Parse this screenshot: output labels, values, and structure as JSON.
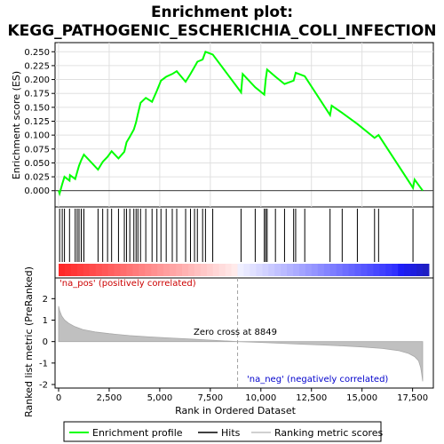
{
  "chart_data": {
    "type": "line",
    "title_line1": "Enrichment plot:",
    "title_line2": "KEGG_PATHOGENIC_ESCHERICHIA_COLI_INFECTION",
    "xlabel": "Rank in Ordered Dataset",
    "ylabel_top": "Enrichment score (ES)",
    "ylabel_bottom": "Ranked list metric (PreRanked)",
    "xlim": [
      0,
      18000
    ],
    "es_ylim": [
      -0.01,
      0.26
    ],
    "metric_ylim": [
      -2,
      2.8
    ],
    "x_ticks": [
      0,
      2500,
      5000,
      7500,
      10000,
      12500,
      15000,
      17500
    ],
    "x_tick_labels": [
      "0",
      "2,500",
      "5,000",
      "7,500",
      "10,000",
      "12,500",
      "15,000",
      "17,500"
    ],
    "es_ticks": [
      0.0,
      0.025,
      0.05,
      0.075,
      0.1,
      0.125,
      0.15,
      0.175,
      0.2,
      0.225,
      0.25
    ],
    "es_tick_labels": [
      "0.000",
      "0.025",
      "0.050",
      "0.075",
      "0.100",
      "0.125",
      "0.150",
      "0.175",
      "0.200",
      "0.225",
      "0.250"
    ],
    "metric_ticks": [
      -2,
      -1,
      0,
      1,
      2
    ],
    "metric_tick_labels": [
      "-2",
      "-1",
      "0",
      "1",
      "2"
    ],
    "zero_cross_label": "Zero cross at 8849",
    "zero_cross": 8849,
    "pos_label": "'na_pos' (positively correlated)",
    "neg_label": "'na_neg' (negatively correlated)",
    "hits": [
      50,
      180,
      290,
      540,
      820,
      920,
      1010,
      1120,
      1250,
      1950,
      2180,
      2420,
      2620,
      2960,
      3250,
      3360,
      3520,
      3720,
      3830,
      3920,
      4050,
      4310,
      4620,
      4860,
      5060,
      5320,
      5620,
      5840,
      6280,
      6520,
      6720,
      6860,
      7120,
      7260,
      7620,
      9020,
      9720,
      10170,
      10240,
      10310,
      10720,
      11170,
      11620,
      11720,
      12170,
      13420,
      14020,
      14770,
      15620,
      15820,
      17520
    ],
    "es_points": [
      [
        0,
        0.0
      ],
      [
        50,
        -0.005
      ],
      [
        180,
        0.012
      ],
      [
        290,
        0.025
      ],
      [
        540,
        0.018
      ],
      [
        560,
        0.028
      ],
      [
        820,
        0.021
      ],
      [
        920,
        0.034
      ],
      [
        1010,
        0.045
      ],
      [
        1120,
        0.055
      ],
      [
        1250,
        0.065
      ],
      [
        1950,
        0.038
      ],
      [
        2180,
        0.052
      ],
      [
        2420,
        0.061
      ],
      [
        2620,
        0.071
      ],
      [
        2960,
        0.058
      ],
      [
        3250,
        0.07
      ],
      [
        3360,
        0.087
      ],
      [
        3520,
        0.097
      ],
      [
        3720,
        0.11
      ],
      [
        3830,
        0.123
      ],
      [
        3920,
        0.138
      ],
      [
        4050,
        0.158
      ],
      [
        4310,
        0.167
      ],
      [
        4620,
        0.16
      ],
      [
        4860,
        0.18
      ],
      [
        5060,
        0.198
      ],
      [
        5320,
        0.205
      ],
      [
        5620,
        0.21
      ],
      [
        5840,
        0.215
      ],
      [
        6280,
        0.196
      ],
      [
        6520,
        0.21
      ],
      [
        6720,
        0.223
      ],
      [
        6860,
        0.232
      ],
      [
        7120,
        0.236
      ],
      [
        7260,
        0.25
      ],
      [
        7620,
        0.245
      ],
      [
        9020,
        0.177
      ],
      [
        9100,
        0.21
      ],
      [
        9720,
        0.186
      ],
      [
        10170,
        0.173
      ],
      [
        10240,
        0.2
      ],
      [
        10310,
        0.218
      ],
      [
        10720,
        0.205
      ],
      [
        11170,
        0.192
      ],
      [
        11620,
        0.198
      ],
      [
        11720,
        0.212
      ],
      [
        12170,
        0.206
      ],
      [
        13420,
        0.136
      ],
      [
        13500,
        0.153
      ],
      [
        14020,
        0.14
      ],
      [
        14770,
        0.12
      ],
      [
        15620,
        0.095
      ],
      [
        15820,
        0.1
      ],
      [
        17520,
        0.005
      ],
      [
        17600,
        0.02
      ],
      [
        18000,
        0.0
      ]
    ],
    "metric_points": [
      [
        0,
        1.65
      ],
      [
        50,
        1.45
      ],
      [
        150,
        1.2
      ],
      [
        300,
        1.0
      ],
      [
        500,
        0.85
      ],
      [
        800,
        0.7
      ],
      [
        1200,
        0.56
      ],
      [
        1800,
        0.45
      ],
      [
        2500,
        0.37
      ],
      [
        3500,
        0.28
      ],
      [
        4500,
        0.22
      ],
      [
        5500,
        0.17
      ],
      [
        6500,
        0.12
      ],
      [
        7500,
        0.07
      ],
      [
        8849,
        0.0
      ],
      [
        10000,
        -0.04
      ],
      [
        11000,
        -0.08
      ],
      [
        12000,
        -0.12
      ],
      [
        13000,
        -0.16
      ],
      [
        14000,
        -0.2
      ],
      [
        15000,
        -0.25
      ],
      [
        16000,
        -0.32
      ],
      [
        16800,
        -0.42
      ],
      [
        17300,
        -0.55
      ],
      [
        17600,
        -0.7
      ],
      [
        17800,
        -0.9
      ],
      [
        17900,
        -1.2
      ],
      [
        17950,
        -1.5
      ],
      [
        18000,
        -1.85
      ]
    ],
    "legend": [
      "Enrichment profile",
      "Hits",
      "Ranking metric scores"
    ],
    "colors": {
      "es_line": "#00ff00",
      "hit": "#000000",
      "metric_fill": "#c0c0c0",
      "zero_line": "#a0a0a0",
      "pos_text": "#cc0000",
      "neg_text": "#0000cc"
    }
  }
}
